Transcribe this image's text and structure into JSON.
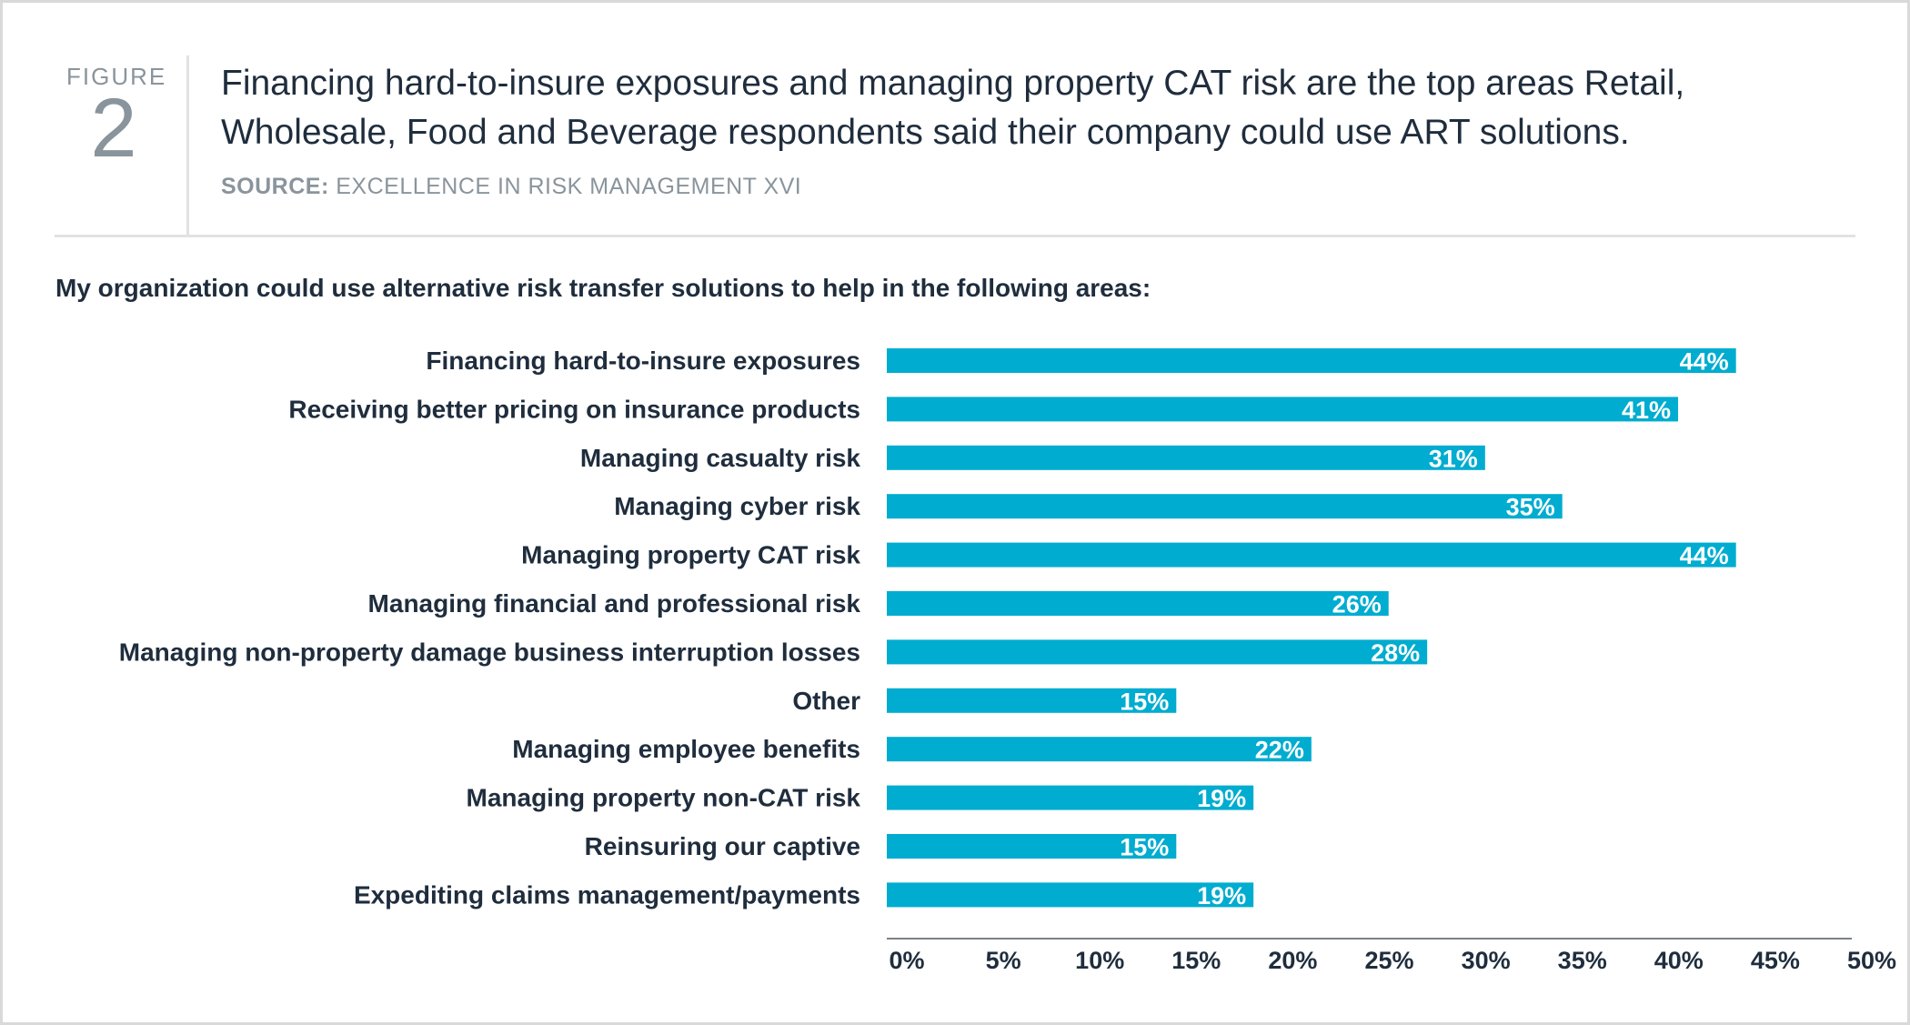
{
  "figure": {
    "word": "FIGURE",
    "number": "2",
    "headline_line1": "Financing hard-to-insure exposures and managing property CAT risk are the top areas Retail,",
    "headline_line2": "Wholesale, Food and Beverage respondents said their company could use ART solutions.",
    "source_label": "SOURCE:",
    "source_text": "EXCELLENCE IN RISK MANAGEMENT XVI"
  },
  "colors": {
    "bar": "#00acd0",
    "text": "#1f2d3d",
    "muted": "#8a949c",
    "axis": "#7a8288"
  },
  "chart_data": {
    "type": "bar",
    "orientation": "horizontal",
    "title": "My organization could use alternative risk transfer solutions to help in the following areas:",
    "categories": [
      "Financing hard-to-insure exposures",
      "Receiving better pricing on insurance products",
      "Managing casualty risk",
      "Managing cyber risk",
      "Managing property CAT risk",
      "Managing financial and professional risk",
      "Managing non-property damage business interruption losses",
      "Other",
      "Managing employee benefits",
      "Managing property non-CAT risk",
      "Reinsuring our captive",
      "Expediting claims management/payments"
    ],
    "values": [
      44,
      41,
      31,
      35,
      44,
      26,
      28,
      15,
      22,
      19,
      15,
      19
    ],
    "value_labels": [
      "44%",
      "41%",
      "31%",
      "35%",
      "44%",
      "26%",
      "28%",
      "15%",
      "22%",
      "19%",
      "15%",
      "19%"
    ],
    "xlim": [
      0,
      50
    ],
    "x_ticks": [
      "0%",
      "5%",
      "10%",
      "15%",
      "20%",
      "25%",
      "30%",
      "35%",
      "40%",
      "45%",
      "50%"
    ],
    "grid": false,
    "legend": "none"
  }
}
